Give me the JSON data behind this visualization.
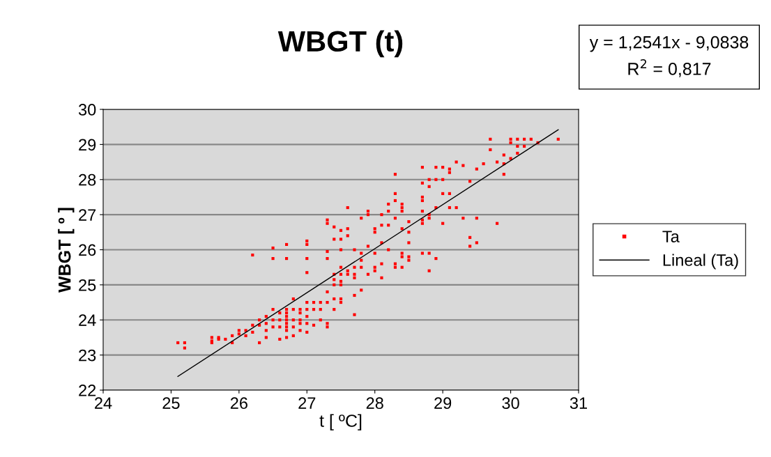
{
  "chart_data": {
    "type": "scatter",
    "title": "WBGT (t)",
    "xlabel": "t [ ºC]",
    "ylabel": "WBGT [ º ]",
    "xlim": [
      24,
      31
    ],
    "xticks": [
      24,
      25,
      26,
      27,
      28,
      29,
      30,
      31
    ],
    "ylim": [
      22,
      30
    ],
    "yticks": [
      22,
      23,
      24,
      25,
      26,
      27,
      28,
      29,
      30
    ],
    "grid": "y",
    "legend": "right",
    "marker": "square",
    "annotations": [
      "y = 1,2541x - 9,0838\nR$^{2}$ = 0,817"
    ],
    "series": [
      {
        "name": "Ta",
        "color": "#ff0000",
        "x": [
          25.1,
          25.2,
          25.2,
          25.6,
          25.6,
          25.6,
          25.7,
          25.7,
          25.8,
          25.9,
          25.9,
          26.0,
          26.0,
          26.1,
          26.1,
          26.2,
          26.2,
          26.3,
          26.3,
          26.3,
          26.4,
          26.4,
          26.4,
          26.4,
          26.5,
          26.5,
          26.5,
          26.6,
          26.6,
          26.6,
          26.6,
          26.7,
          26.7,
          26.7,
          26.7,
          26.7,
          26.7,
          26.7,
          26.7,
          26.8,
          26.8,
          26.8,
          26.8,
          26.8,
          26.9,
          26.9,
          26.9,
          26.9,
          26.9,
          27.0,
          27.0,
          27.0,
          27.0,
          27.0,
          27.1,
          27.1,
          27.1,
          27.2,
          27.2,
          27.2,
          27.3,
          27.3,
          27.3,
          27.3,
          27.4,
          27.4,
          27.4,
          27.5,
          27.5,
          27.5,
          27.6,
          27.7,
          27.7,
          27.7,
          27.8,
          26.2,
          26.5,
          26.5,
          26.7,
          26.7,
          27.0,
          27.0,
          27.0,
          27.0,
          27.3,
          27.3,
          27.3,
          27.3,
          27.4,
          27.4,
          27.4,
          27.4,
          27.5,
          27.5,
          27.5,
          27.5,
          27.5,
          27.5,
          27.6,
          27.6,
          27.6,
          27.6,
          27.7,
          27.7,
          27.7,
          27.8,
          27.8,
          27.8,
          27.8,
          27.9,
          27.9,
          27.9,
          27.9,
          28.0,
          28.0,
          28.0,
          28.0,
          28.0,
          28.1,
          28.1,
          28.1,
          28.1,
          28.1,
          28.2,
          28.2,
          28.2,
          28.2,
          28.3,
          28.3,
          28.3,
          28.3,
          28.3,
          28.3,
          28.4,
          28.4,
          28.4,
          28.4,
          28.4,
          28.4,
          28.4,
          28.5,
          28.5,
          28.5,
          28.5,
          28.5,
          28.7,
          28.7,
          28.7,
          28.7,
          28.7,
          28.7,
          28.7,
          28.7,
          28.8,
          28.8,
          28.8,
          28.8,
          28.8,
          28.8,
          28.9,
          28.9,
          28.9,
          28.9,
          29.0,
          29.0,
          29.0,
          29.0,
          29.1,
          29.1,
          29.1,
          29.1,
          29.2,
          29.2,
          29.3,
          29.3,
          29.4,
          29.4,
          29.4,
          29.5,
          29.5,
          29.5,
          29.6,
          29.7,
          29.7,
          29.8,
          29.8,
          29.9,
          29.9,
          29.9,
          30.0,
          30.0,
          30.0,
          30.1,
          30.1,
          30.1,
          30.2,
          30.2,
          30.3,
          30.4,
          30.7
        ],
        "values": [
          23.35,
          23.35,
          23.2,
          23.5,
          23.4,
          23.35,
          23.5,
          23.45,
          23.45,
          23.55,
          23.35,
          23.7,
          23.6,
          23.7,
          23.55,
          23.85,
          23.65,
          24.0,
          23.85,
          23.35,
          24.1,
          23.9,
          23.7,
          23.5,
          24.3,
          24.0,
          23.8,
          24.2,
          24.0,
          23.8,
          23.45,
          24.3,
          24.2,
          24.1,
          24.0,
          23.9,
          23.8,
          23.7,
          23.5,
          24.6,
          24.3,
          24.0,
          23.8,
          23.55,
          24.3,
          24.2,
          24.0,
          23.9,
          23.7,
          24.5,
          24.3,
          24.1,
          23.9,
          23.65,
          24.5,
          24.3,
          23.85,
          24.5,
          24.3,
          24.0,
          24.8,
          24.5,
          23.9,
          23.8,
          25.0,
          24.6,
          24.3,
          25.0,
          24.6,
          24.5,
          25.3,
          24.7,
          24.15,
          25.5,
          24.85,
          25.85,
          26.05,
          25.75,
          26.15,
          25.75,
          26.25,
          26.15,
          25.75,
          25.35,
          26.85,
          26.75,
          25.95,
          25.75,
          26.65,
          26.3,
          25.3,
          25.15,
          26.55,
          26.3,
          26.0,
          25.5,
          25.3,
          25.1,
          27.2,
          26.6,
          26.4,
          25.4,
          26.0,
          25.3,
          25.2,
          26.9,
          25.9,
          25.7,
          25.5,
          27.1,
          27.0,
          26.1,
          25.3,
          26.6,
          26.5,
          25.9,
          25.5,
          25.4,
          27.0,
          26.7,
          26.2,
          25.6,
          25.2,
          27.3,
          27.1,
          26.7,
          26.0,
          28.15,
          27.6,
          27.4,
          26.9,
          25.6,
          25.5,
          27.3,
          27.2,
          27.1,
          26.6,
          25.9,
          25.8,
          25.5,
          26.8,
          26.5,
          26.2,
          25.8,
          25.7,
          28.35,
          27.9,
          27.5,
          27.4,
          27.1,
          26.85,
          26.75,
          25.9,
          28.0,
          27.8,
          27.0,
          26.9,
          25.9,
          25.4,
          28.35,
          28.0,
          27.2,
          25.75,
          28.35,
          28.0,
          27.6,
          26.75,
          28.3,
          28.2,
          27.6,
          27.2,
          28.5,
          27.2,
          28.4,
          26.9,
          27.95,
          26.35,
          26.1,
          28.3,
          26.9,
          26.2,
          28.45,
          29.15,
          28.85,
          28.5,
          26.75,
          28.7,
          28.45,
          28.15,
          29.15,
          29.05,
          28.6,
          29.15,
          28.95,
          28.75,
          29.15,
          28.95,
          29.15,
          29.05,
          29.15
        ]
      },
      {
        "name": "Lineal (Ta)",
        "type": "line",
        "color": "#000000",
        "marker": "none",
        "x": [
          25.1,
          30.7
        ],
        "values": [
          22.39,
          29.42
        ]
      }
    ]
  }
}
